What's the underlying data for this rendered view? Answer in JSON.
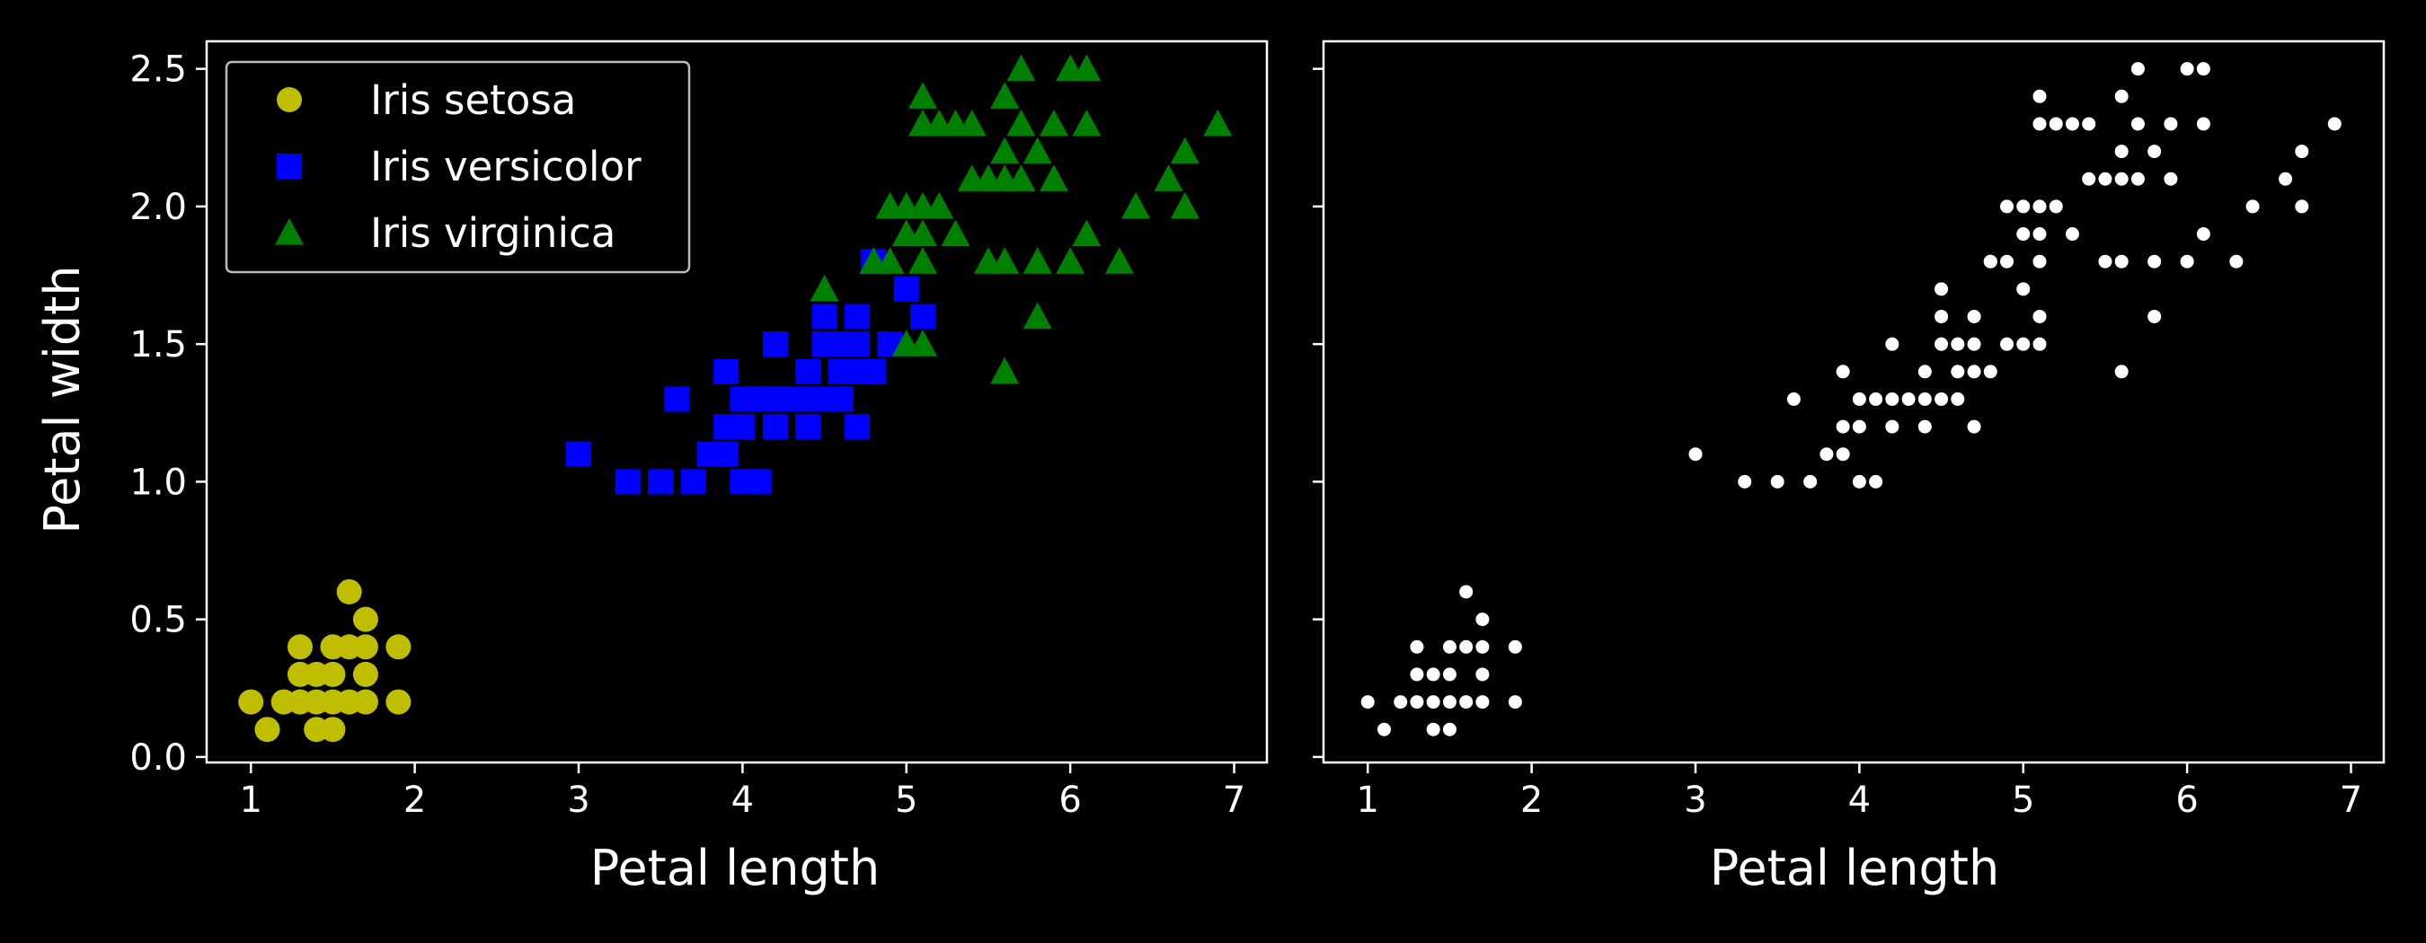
{
  "chart_data": [
    {
      "type": "scatter",
      "title": "",
      "xlabel": "Petal length",
      "ylabel": "Petal width",
      "xlim": [
        0.73,
        7.2
      ],
      "ylim": [
        -0.02,
        2.6
      ],
      "xticks": [
        1,
        2,
        3,
        4,
        5,
        6,
        7
      ],
      "yticks": [
        0.0,
        0.5,
        1.0,
        1.5,
        2.0,
        2.5
      ],
      "ytick_labels": [
        "0.0",
        "0.5",
        "1.0",
        "1.5",
        "2.0",
        "2.5"
      ],
      "grid": false,
      "legend": "top-left",
      "series": [
        {
          "name": "Iris setosa",
          "marker": "circle",
          "color": "#bfbf00",
          "points": [
            [
              1.0,
              0.2
            ],
            [
              1.1,
              0.1
            ],
            [
              1.2,
              0.2
            ],
            [
              1.3,
              0.2
            ],
            [
              1.3,
              0.3
            ],
            [
              1.3,
              0.4
            ],
            [
              1.4,
              0.1
            ],
            [
              1.4,
              0.2
            ],
            [
              1.4,
              0.3
            ],
            [
              1.5,
              0.1
            ],
            [
              1.5,
              0.2
            ],
            [
              1.5,
              0.3
            ],
            [
              1.5,
              0.4
            ],
            [
              1.6,
              0.2
            ],
            [
              1.6,
              0.4
            ],
            [
              1.6,
              0.6
            ],
            [
              1.7,
              0.2
            ],
            [
              1.7,
              0.3
            ],
            [
              1.7,
              0.4
            ],
            [
              1.7,
              0.5
            ],
            [
              1.9,
              0.2
            ],
            [
              1.9,
              0.4
            ]
          ]
        },
        {
          "name": "Iris versicolor",
          "marker": "square",
          "color": "#0000ff",
          "points": [
            [
              3.0,
              1.1
            ],
            [
              3.3,
              1.0
            ],
            [
              3.5,
              1.0
            ],
            [
              3.6,
              1.3
            ],
            [
              3.7,
              1.0
            ],
            [
              3.8,
              1.1
            ],
            [
              3.9,
              1.1
            ],
            [
              3.9,
              1.2
            ],
            [
              3.9,
              1.4
            ],
            [
              4.0,
              1.0
            ],
            [
              4.0,
              1.2
            ],
            [
              4.0,
              1.3
            ],
            [
              4.1,
              1.0
            ],
            [
              4.1,
              1.3
            ],
            [
              4.2,
              1.2
            ],
            [
              4.2,
              1.3
            ],
            [
              4.2,
              1.5
            ],
            [
              4.3,
              1.3
            ],
            [
              4.4,
              1.2
            ],
            [
              4.4,
              1.3
            ],
            [
              4.4,
              1.4
            ],
            [
              4.5,
              1.3
            ],
            [
              4.5,
              1.5
            ],
            [
              4.5,
              1.6
            ],
            [
              4.6,
              1.3
            ],
            [
              4.6,
              1.4
            ],
            [
              4.6,
              1.5
            ],
            [
              4.7,
              1.2
            ],
            [
              4.7,
              1.4
            ],
            [
              4.7,
              1.5
            ],
            [
              4.7,
              1.6
            ],
            [
              4.8,
              1.4
            ],
            [
              4.8,
              1.8
            ],
            [
              4.9,
              1.5
            ],
            [
              5.0,
              1.7
            ],
            [
              5.1,
              1.6
            ]
          ]
        },
        {
          "name": "Iris virginica",
          "marker": "triangle",
          "color": "#008000",
          "points": [
            [
              4.5,
              1.7
            ],
            [
              4.8,
              1.8
            ],
            [
              4.9,
              1.8
            ],
            [
              4.9,
              2.0
            ],
            [
              5.0,
              1.5
            ],
            [
              5.0,
              1.9
            ],
            [
              5.0,
              2.0
            ],
            [
              5.1,
              1.5
            ],
            [
              5.1,
              1.8
            ],
            [
              5.1,
              1.9
            ],
            [
              5.1,
              2.0
            ],
            [
              5.1,
              2.3
            ],
            [
              5.1,
              2.4
            ],
            [
              5.2,
              2.0
            ],
            [
              5.2,
              2.3
            ],
            [
              5.3,
              1.9
            ],
            [
              5.3,
              2.3
            ],
            [
              5.4,
              2.1
            ],
            [
              5.4,
              2.3
            ],
            [
              5.5,
              1.8
            ],
            [
              5.5,
              2.1
            ],
            [
              5.6,
              1.4
            ],
            [
              5.6,
              1.8
            ],
            [
              5.6,
              2.1
            ],
            [
              5.6,
              2.2
            ],
            [
              5.6,
              2.4
            ],
            [
              5.7,
              2.1
            ],
            [
              5.7,
              2.3
            ],
            [
              5.7,
              2.5
            ],
            [
              5.8,
              1.6
            ],
            [
              5.8,
              1.8
            ],
            [
              5.8,
              2.2
            ],
            [
              5.9,
              2.1
            ],
            [
              5.9,
              2.3
            ],
            [
              6.0,
              1.8
            ],
            [
              6.0,
              2.5
            ],
            [
              6.1,
              1.9
            ],
            [
              6.1,
              2.3
            ],
            [
              6.1,
              2.5
            ],
            [
              6.3,
              1.8
            ],
            [
              6.4,
              2.0
            ],
            [
              6.6,
              2.1
            ],
            [
              6.7,
              2.0
            ],
            [
              6.7,
              2.2
            ],
            [
              6.9,
              2.3
            ]
          ]
        }
      ]
    },
    {
      "type": "scatter",
      "title": "",
      "xlabel": "Petal length",
      "ylabel": "",
      "xlim": [
        0.73,
        7.2
      ],
      "ylim": [
        -0.02,
        2.6
      ],
      "xticks": [
        1,
        2,
        3,
        4,
        5,
        6,
        7
      ],
      "yticks": [
        0.0,
        0.5,
        1.0,
        1.5,
        2.0,
        2.5
      ],
      "ytick_labels": [],
      "grid": false,
      "legend": "none",
      "series": [
        {
          "marker": "dot",
          "color": "#ffffff",
          "points_from": "all"
        }
      ]
    }
  ]
}
